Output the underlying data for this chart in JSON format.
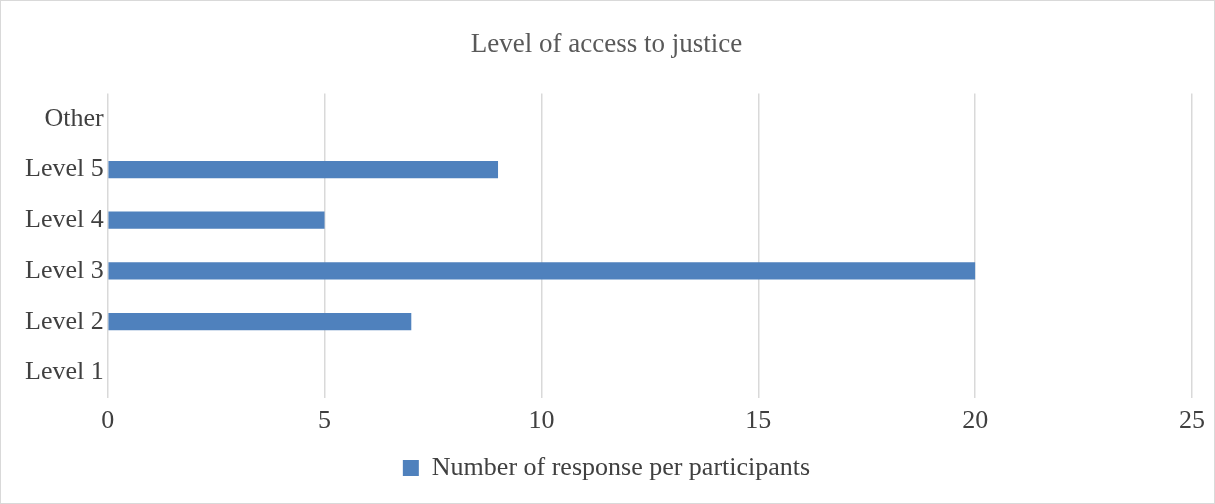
{
  "chart_data": {
    "type": "bar",
    "orientation": "horizontal",
    "title": "Level of access to justice",
    "categories": [
      "Other",
      "Level 5",
      "Level 4",
      "Level 3",
      "Level 2",
      "Level 1"
    ],
    "series": [
      {
        "name": "Number of response per participants",
        "color": "#4f81bd",
        "values": [
          0,
          9,
          5,
          20,
          7,
          0
        ]
      }
    ],
    "xlim": [
      0,
      25
    ],
    "xticks": [
      0,
      5,
      10,
      15,
      20,
      25
    ],
    "grid": "x",
    "legend": "bottom"
  }
}
